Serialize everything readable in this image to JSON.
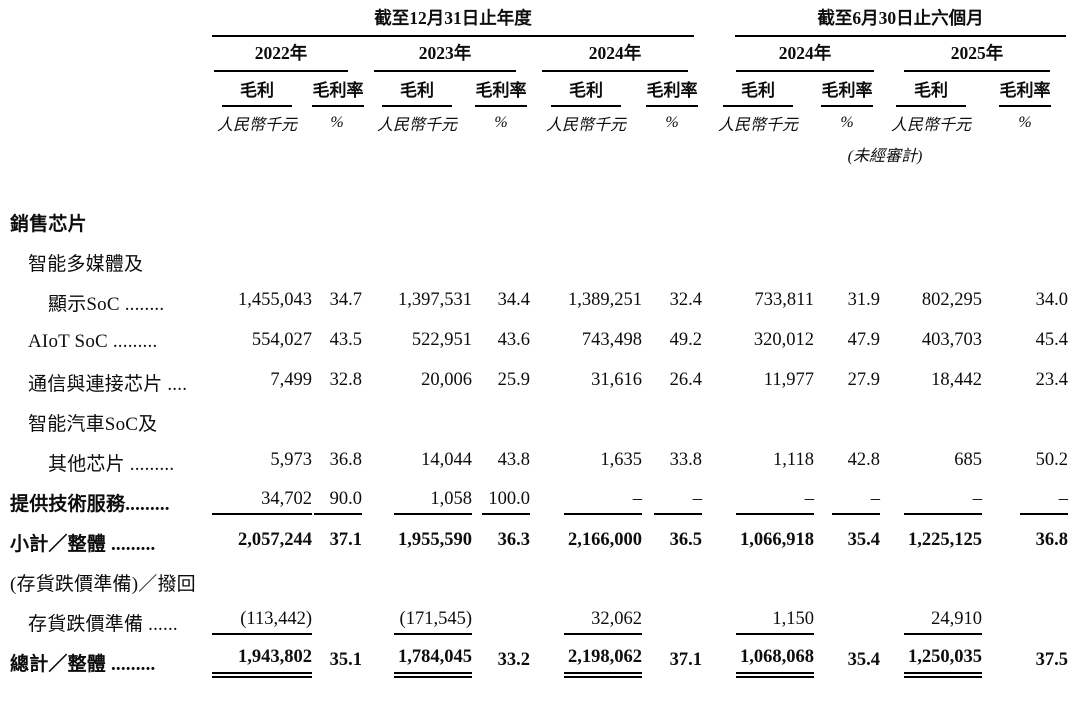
{
  "table": {
    "period_groups": [
      {
        "title": "截至12月31日止年度"
      },
      {
        "title": "截至6月30日止六個月"
      }
    ],
    "year_cols": [
      {
        "label": "2022年"
      },
      {
        "label": "2023年"
      },
      {
        "label": "2024年"
      },
      {
        "label": "2024年"
      },
      {
        "label": "2025年"
      }
    ],
    "col_headers": {
      "gross_profit": "毛利",
      "gross_margin": "毛利率",
      "unit_rmb": "人民幣千元",
      "unit_pct": "%",
      "unaudited_note": "(未經審計)"
    },
    "rows": [
      {
        "label": "銷售芯片",
        "indent": 0,
        "label_bold": true,
        "values": [
          "",
          "",
          "",
          "",
          "",
          "",
          "",
          "",
          "",
          ""
        ]
      },
      {
        "label": "智能多媒體及",
        "indent": 1,
        "values": [
          "",
          "",
          "",
          "",
          "",
          "",
          "",
          "",
          "",
          ""
        ]
      },
      {
        "label": "顯示SoC ........",
        "indent": 2,
        "values": [
          "1,455,043",
          "34.7",
          "1,397,531",
          "34.4",
          "1,389,251",
          "32.4",
          "733,811",
          "31.9",
          "802,295",
          "34.0"
        ]
      },
      {
        "label": "AIoT SoC .........",
        "indent": 1,
        "values": [
          "554,027",
          "43.5",
          "522,951",
          "43.6",
          "743,498",
          "49.2",
          "320,012",
          "47.9",
          "403,703",
          "45.4"
        ]
      },
      {
        "label": "通信與連接芯片 ....",
        "indent": 1,
        "values": [
          "7,499",
          "32.8",
          "20,006",
          "25.9",
          "31,616",
          "26.4",
          "11,977",
          "27.9",
          "18,442",
          "23.4"
        ]
      },
      {
        "label": "智能汽車SoC及",
        "indent": 1,
        "values": [
          "",
          "",
          "",
          "",
          "",
          "",
          "",
          "",
          "",
          ""
        ]
      },
      {
        "label": "其他芯片 .........",
        "indent": 2,
        "values": [
          "5,973",
          "36.8",
          "14,044",
          "43.8",
          "1,635",
          "33.8",
          "1,118",
          "42.8",
          "685",
          "50.2"
        ]
      },
      {
        "label": "提供技術服務.........",
        "indent": 0,
        "label_bold": true,
        "rule_after": true,
        "values": [
          "34,702",
          "90.0",
          "1,058",
          "100.0",
          "–",
          "–",
          "–",
          "–",
          "–",
          "–"
        ]
      },
      {
        "label": "小計／整體 .........",
        "indent": 0,
        "label_bold": true,
        "values_bold": true,
        "values": [
          "2,057,244",
          "37.1",
          "1,955,590",
          "36.3",
          "2,166,000",
          "36.5",
          "1,066,918",
          "35.4",
          "1,225,125",
          "36.8"
        ]
      },
      {
        "label": "(存貨跌價準備)／撥回",
        "indent": 0,
        "values": [
          "",
          "",
          "",
          "",
          "",
          "",
          "",
          "",
          "",
          ""
        ]
      },
      {
        "label": "存貨跌價準備 ......",
        "indent": 1,
        "rule_after": true,
        "values": [
          "(113,442)",
          "",
          "(171,545)",
          "",
          "32,062",
          "",
          "1,150",
          "",
          "24,910",
          ""
        ]
      },
      {
        "label": "總計／整體 .........",
        "indent": 0,
        "label_bold": true,
        "values_bold": true,
        "double_rule_after": true,
        "values": [
          "1,943,802",
          "35.1",
          "1,784,045",
          "33.2",
          "2,198,062",
          "37.1",
          "1,068,068",
          "35.4",
          "1,250,035",
          "37.5"
        ]
      }
    ]
  }
}
